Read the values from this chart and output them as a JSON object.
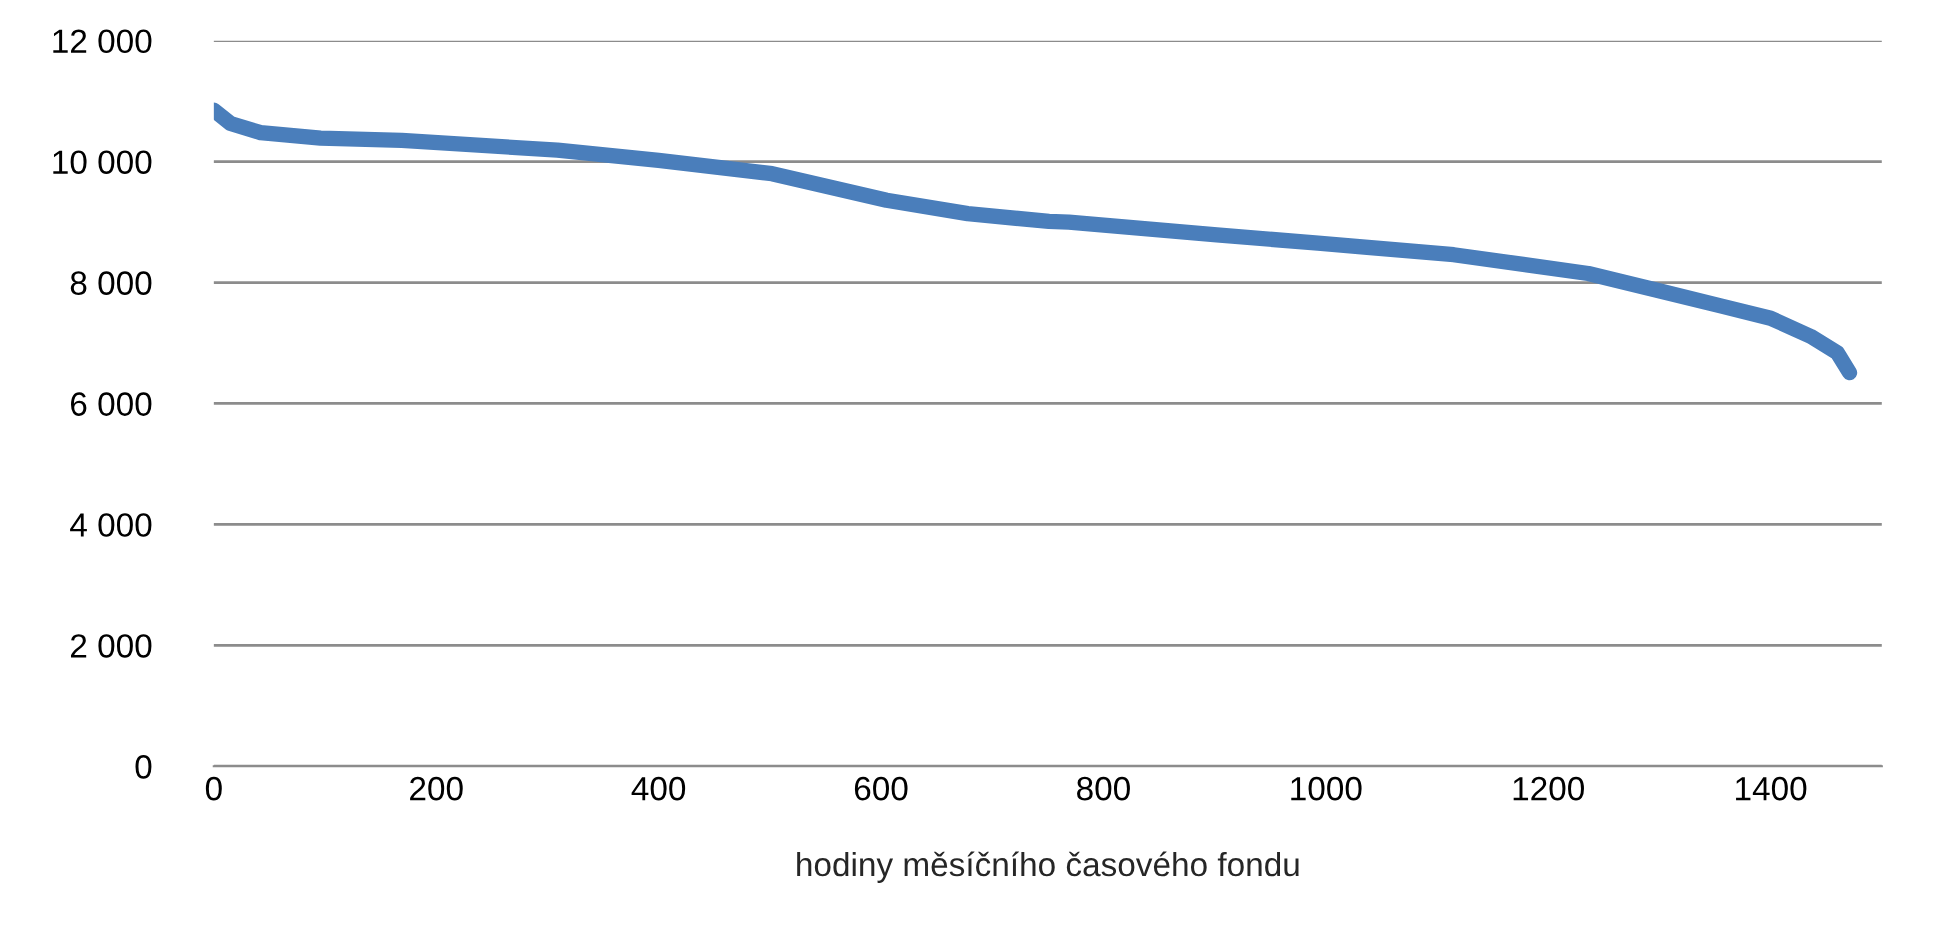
{
  "chart_data": {
    "type": "line",
    "xlabel": "hodiny měsíčního časového fondu",
    "series": [
      {
        "color": "#4a7ebb",
        "x": [
          0,
          15,
          42,
          96,
          169,
          309,
          400,
          502,
          605,
          678,
          751,
          769,
          902,
          993,
          1115,
          1236,
          1296,
          1356,
          1400,
          1436,
          1460,
          1471
        ],
        "values": [
          10850,
          10630,
          10480,
          10390,
          10350,
          10190,
          10020,
          9800,
          9360,
          9140,
          9010,
          9000,
          8790,
          8650,
          8460,
          8150,
          7880,
          7610,
          7410,
          7110,
          6840,
          6510
        ]
      }
    ],
    "xlim": [
      0,
      1500
    ],
    "xticks": [
      0,
      200,
      400,
      600,
      800,
      1000,
      1200,
      1400
    ],
    "ylim": [
      0,
      12000
    ],
    "yticks": [
      {
        "value": 0,
        "label": "0"
      },
      {
        "value": 2000,
        "label": "2 000"
      },
      {
        "value": 4000,
        "label": "4 000"
      },
      {
        "value": 6000,
        "label": "6 000"
      },
      {
        "value": 8000,
        "label": "8 000"
      },
      {
        "value": 10000,
        "label": "10 000"
      },
      {
        "value": 12000,
        "label": "12 000"
      }
    ],
    "grid": "y",
    "marker": "none",
    "line_style": "solid"
  }
}
